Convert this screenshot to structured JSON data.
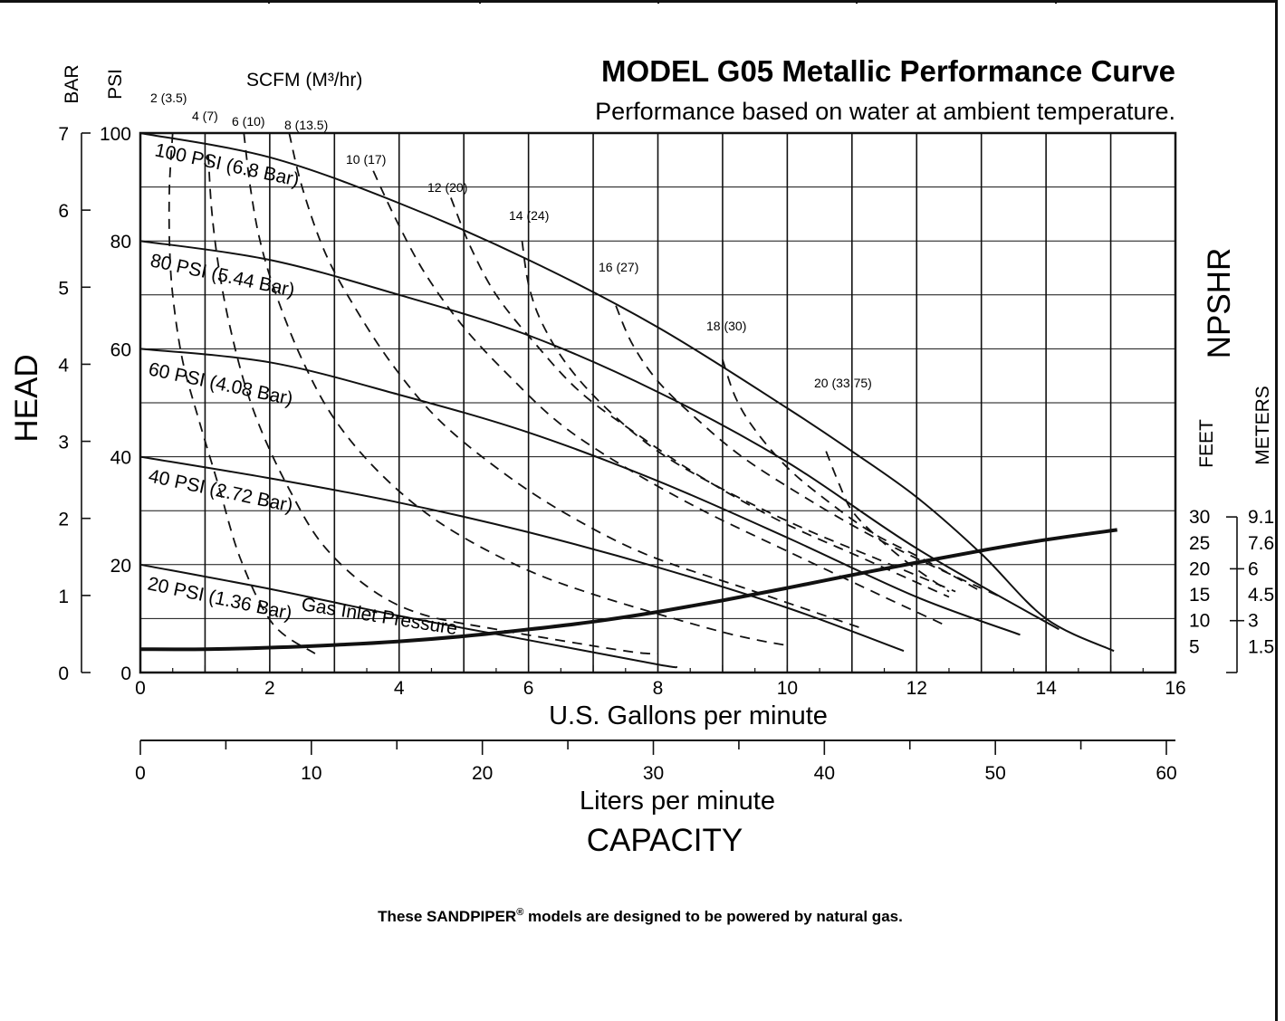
{
  "chart_data": {
    "type": "line",
    "title": "MODEL G05 Metallic Performance Curve",
    "subtitle": "Performance based on water at ambient temperature.",
    "xlabel": "U.S. Gallons per minute",
    "xlabel_secondary": "Liters per minute",
    "xlabel_group": "CAPACITY",
    "ylabel": "HEAD",
    "ylabel_psi": "PSI",
    "ylabel_bar": "BAR",
    "scfm_label": "SCFM (M³/hr)",
    "npshr_label": "NPSHR",
    "npshr_feet_label": "FEET",
    "npshr_meters_label": "METERS",
    "gas_inlet_label": "Gas Inlet Pressure",
    "xlim": [
      0,
      16
    ],
    "ylim": [
      0,
      100
    ],
    "grid": true,
    "x_ticks": [
      "0",
      "2",
      "4",
      "6",
      "8",
      "10",
      "12",
      "14",
      "16"
    ],
    "lpm_ticks": [
      "0",
      "10",
      "20",
      "30",
      "40",
      "50",
      "60"
    ],
    "psi_ticks": [
      "0",
      "20",
      "40",
      "60",
      "80",
      "100"
    ],
    "bar_ticks": [
      "0",
      "1",
      "2",
      "3",
      "4",
      "5",
      "6",
      "7"
    ],
    "npshr_feet_ticks": [
      "30",
      "25",
      "20",
      "15",
      "10",
      "5"
    ],
    "npshr_meters_ticks": [
      "9.1",
      "7.6",
      "6",
      "4.5",
      "3",
      "1.5"
    ],
    "series": [
      {
        "name": "100 PSI (6.8 Bar)",
        "x": [
          0,
          2,
          4,
          6,
          8,
          10,
          11,
          12,
          13,
          14,
          15.05
        ],
        "y": [
          100,
          95.5,
          87,
          76.5,
          64,
          49,
          41,
          32.5,
          22,
          10,
          4
        ]
      },
      {
        "name": "80 PSI (5.44 Bar)",
        "x": [
          0,
          2,
          4,
          6,
          8,
          10,
          12,
          14.2
        ],
        "y": [
          80,
          76.5,
          70,
          62.5,
          52,
          39,
          23,
          8
        ]
      },
      {
        "name": "60 PSI (4.08 Bar)",
        "x": [
          0,
          2,
          4,
          6,
          8,
          10,
          12,
          13.6
        ],
        "y": [
          60,
          57.5,
          51.5,
          44.5,
          35.5,
          25,
          14,
          7
        ]
      },
      {
        "name": "40 PSI (2.72 Bar)",
        "x": [
          0,
          2,
          4,
          6,
          8,
          10,
          11.8
        ],
        "y": [
          40,
          36,
          31.5,
          26,
          19.5,
          12,
          4
        ]
      },
      {
        "name": "20 PSI (1.36 Bar)",
        "x": [
          0,
          2,
          4,
          6,
          8,
          8.3
        ],
        "y": [
          20,
          15.5,
          10.5,
          6,
          1.5,
          1
        ]
      }
    ],
    "air_lines": [
      {
        "name": "2 (3.5)",
        "x": [
          0.5,
          0.45,
          0.45,
          0.5,
          0.65,
          0.9,
          1.2,
          1.55,
          2.05,
          2.7
        ],
        "y": [
          100,
          90,
          80,
          70,
          58,
          47,
          35,
          21,
          9,
          3.5
        ]
      },
      {
        "name": "4 (7)",
        "x": [
          1.05,
          1.1,
          1.2,
          1.35,
          1.6,
          1.9,
          2.3,
          2.8,
          3.5,
          4.3,
          5.5,
          7.5,
          8.0
        ],
        "y": [
          96,
          86,
          76,
          66,
          54,
          44,
          34,
          24,
          16,
          11,
          8,
          4,
          3.5
        ]
      },
      {
        "name": "6 (10)",
        "x": [
          1.6,
          1.7,
          1.85,
          2.1,
          2.5,
          3.0,
          3.7,
          4.6,
          5.8,
          7.0,
          9.0,
          10.0
        ],
        "y": [
          100,
          90,
          80,
          70,
          58,
          47,
          37,
          28,
          20,
          14.5,
          7.5,
          5
        ]
      },
      {
        "name": "8 (13.5)",
        "x": [
          2.3,
          2.5,
          2.85,
          3.3,
          3.9,
          4.6,
          5.5,
          6.5,
          7.8,
          9.5,
          11.2
        ],
        "y": [
          100,
          90,
          78,
          68,
          57,
          47,
          38,
          30,
          22,
          15,
          8
        ]
      },
      {
        "name": "10 (17)",
        "x": [
          3.6,
          3.95,
          4.4,
          5.0,
          5.7,
          6.5,
          7.5,
          8.7,
          10.0,
          11.5,
          12.4
        ],
        "y": [
          93,
          84,
          74,
          64,
          55,
          46,
          38,
          30,
          22.5,
          14,
          9
        ]
      },
      {
        "name": "12 (20)",
        "x": [
          4.8,
          5.1,
          5.5,
          6.1,
          6.8,
          7.7,
          8.7,
          9.9,
          11.2,
          12.5
        ],
        "y": [
          88,
          79,
          70,
          61,
          52,
          44,
          36,
          28,
          21,
          14
        ]
      },
      {
        "name": "14 (24)",
        "x": [
          5.9,
          6.0,
          6.2,
          6.6,
          7.2,
          8.0,
          9.0,
          10.2,
          11.4,
          12.6
        ],
        "y": [
          80,
          72,
          65,
          57,
          49,
          41,
          34,
          27,
          21,
          15
        ]
      },
      {
        "name": "16 (27)",
        "x": [
          7.35,
          7.6,
          8.0,
          8.6,
          9.3,
          10.2,
          11.2,
          12.2,
          13.3
        ],
        "y": [
          68,
          61,
          54,
          47,
          40,
          33,
          26,
          20,
          14
        ]
      },
      {
        "name": "18 (30)",
        "x": [
          9.0,
          9.2,
          9.5,
          10.0,
          10.6,
          11.3,
          12.1,
          13.0
        ],
        "y": [
          58,
          51,
          45,
          38,
          32,
          26,
          21,
          15
        ]
      },
      {
        "name": "20 (33.75)",
        "x": [
          10.6,
          10.8,
          11.0,
          11.4,
          11.9,
          12.5
        ],
        "y": [
          41,
          35,
          30,
          25,
          20,
          15
        ]
      }
    ],
    "npshr_curve": {
      "name": "NPSHR",
      "x": [
        0,
        1,
        2,
        3,
        4,
        5,
        6,
        7,
        8,
        9,
        10,
        11,
        12,
        13,
        14,
        15.1
      ],
      "y": [
        4.5,
        4.5,
        4.8,
        5.3,
        6.0,
        7.0,
        8.3,
        9.8,
        11.7,
        13.9,
        16.3,
        18.8,
        21.2,
        23.5,
        25.6,
        27.5
      ]
    }
  },
  "footnote": {
    "before": "These SANDPIPER",
    "mark": "®",
    "after": " models are designed to be powered by natural gas."
  }
}
